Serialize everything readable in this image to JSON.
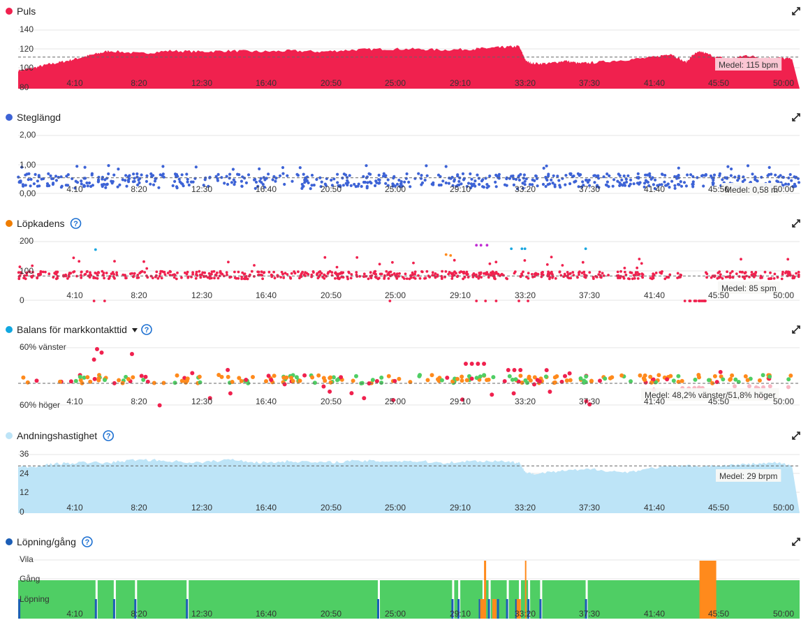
{
  "colors": {
    "puls": "#f0214e",
    "steglangd": "#3d63d6",
    "lopkadens_dot": "#ef7d00",
    "lopkadens_series": "#f0214e",
    "balans_dot": "#11a7e0",
    "andning": "#bde4f7",
    "andning_dot": "#bde4f7",
    "lopning_dot": "#1c5eb6",
    "green": "#4fce64",
    "orange": "#ff8a1c",
    "purple": "#c02bd3",
    "cyan": "#19a7e0",
    "blue_tick": "#1c5eb6",
    "pink": "#f7b7c3"
  },
  "x_ticks": [
    "4:10",
    "8:20",
    "12:30",
    "16:40",
    "20:50",
    "25:00",
    "29:10",
    "33:20",
    "37:30",
    "41:40",
    "45:50",
    "50:00"
  ],
  "chart_data": [
    {
      "id": "puls",
      "type": "area",
      "title": "Puls",
      "yticks": [
        "140",
        "120",
        "100",
        "80"
      ],
      "ylim": [
        80,
        145
      ],
      "avg_label": "Medel: 115 bpm",
      "avg": 115,
      "x_minutes": [
        0,
        1,
        2,
        3,
        4,
        5,
        6,
        8,
        10,
        12,
        14,
        16,
        18,
        20,
        22,
        24,
        26,
        28,
        30,
        31,
        32,
        33,
        33.5,
        34,
        35,
        36,
        37,
        38,
        40,
        42,
        43,
        44,
        44.5,
        45,
        46,
        47,
        48,
        49,
        50,
        51
      ],
      "values": [
        100,
        103,
        107,
        110,
        114,
        118,
        122,
        119,
        122,
        121,
        122,
        121,
        122,
        121,
        123,
        124,
        124,
        123,
        124,
        125,
        126,
        127,
        110,
        108,
        108,
        111,
        108,
        109,
        112,
        115,
        119,
        109,
        118,
        121,
        115,
        113,
        117,
        114,
        114,
        113
      ]
    },
    {
      "id": "steglangd",
      "type": "scatter",
      "title": "Steglängd",
      "yticks": [
        "2,00",
        "1,00",
        "0,00"
      ],
      "ylim": [
        0,
        2
      ],
      "avg_label": "Medel: 0,58 m",
      "avg": 0.58
    },
    {
      "id": "lopkadens",
      "type": "scatter",
      "title": "Löpkadens",
      "yticks": [
        "200",
        "100",
        "0"
      ],
      "ylim": [
        0,
        200
      ],
      "avg_label": "Medel: 85 spm",
      "avg": 85
    },
    {
      "id": "balans",
      "type": "scatter",
      "title": "Balans för markkontakttid",
      "yticks": [
        "60% vänster",
        "60% höger"
      ],
      "ylim": [
        -10,
        10
      ],
      "avg_label": "Medel: 48,2% vänster/51,8% höger",
      "avg": 0
    },
    {
      "id": "andning",
      "type": "area",
      "title": "Andningshastighet",
      "yticks": [
        "36",
        "24",
        "12",
        "0"
      ],
      "ylim": [
        0,
        36
      ],
      "avg_label": "Medel: 29 brpm",
      "avg": 29,
      "x_minutes": [
        0,
        1,
        2,
        4,
        6,
        8,
        10,
        12,
        14,
        16,
        18,
        20,
        22,
        24,
        26,
        28,
        30,
        32,
        33,
        33.5,
        34,
        36,
        38,
        40,
        42,
        44,
        46,
        48,
        50,
        51
      ],
      "values": [
        29,
        28,
        30,
        31,
        31,
        33,
        32,
        31,
        33,
        31,
        32,
        31,
        32,
        32,
        32,
        31,
        32,
        32,
        31,
        25,
        24,
        26,
        27,
        25,
        28,
        29,
        29,
        30,
        31,
        29
      ]
    },
    {
      "id": "lopning",
      "type": "bar",
      "title": "Löpning/gång",
      "yticks": [
        "Vila",
        "Gång",
        "Löpning"
      ],
      "categories": [
        "Vila",
        "Gång",
        "Löpning"
      ]
    }
  ]
}
